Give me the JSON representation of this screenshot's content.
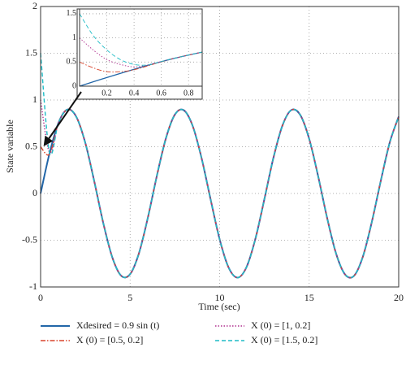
{
  "chart_data": [
    {
      "type": "line",
      "xlabel": "Time (sec)",
      "ylabel": "State variable",
      "x": [
        0,
        0.5,
        1,
        1.5,
        2,
        2.5,
        3,
        3.5,
        4,
        4.5,
        5,
        5.5,
        6,
        6.5,
        7,
        7.5,
        8,
        8.5,
        9,
        9.5,
        10,
        10.5,
        11,
        11.5,
        12,
        12.5,
        13,
        13.5,
        14,
        14.5,
        15,
        15.5,
        16,
        16.5,
        17,
        17.5,
        18,
        18.5,
        19,
        19.5,
        20
      ],
      "series": [
        {
          "name": "Xdesired = 0.9 sin (t)",
          "color": "#2266a8",
          "linestyle": "solid",
          "values": [
            0,
            0.431,
            0.757,
            0.898,
            0.818,
            0.539,
            0.127,
            -0.316,
            -0.681,
            -0.88,
            -0.863,
            -0.635,
            -0.251,
            0.194,
            0.591,
            0.844,
            0.89,
            0.719,
            0.371,
            -0.068,
            -0.49,
            -0.792,
            -0.9,
            -0.788,
            -0.483,
            -0.06,
            0.378,
            0.723,
            0.892,
            0.841,
            0.585,
            0.186,
            -0.259,
            -0.641,
            -0.865,
            -0.882,
            -0.676,
            -0.304,
            0.135,
            0.545,
            0.822
          ]
        },
        {
          "name": "X (0) = [0.5, 0.2]",
          "color": "#d9442b",
          "linestyle": "dashdot",
          "values": [
            0.5,
            0.42,
            0.757,
            0.898,
            0.818,
            0.539,
            0.127,
            -0.316,
            -0.681,
            -0.88,
            -0.863,
            -0.635,
            -0.251,
            0.194,
            0.591,
            0.844,
            0.89,
            0.719,
            0.371,
            -0.068,
            -0.49,
            -0.792,
            -0.9,
            -0.788,
            -0.483,
            -0.06,
            0.378,
            0.723,
            0.892,
            0.841,
            0.585,
            0.186,
            -0.259,
            -0.641,
            -0.865,
            -0.882,
            -0.676,
            -0.304,
            0.135,
            0.545,
            0.822
          ]
        },
        {
          "name": "X (0) = [1, 0.2]",
          "color": "#b0308f",
          "linestyle": "dotted",
          "values": [
            1,
            0.44,
            0.757,
            0.898,
            0.818,
            0.539,
            0.127,
            -0.316,
            -0.681,
            -0.88,
            -0.863,
            -0.635,
            -0.251,
            0.194,
            0.591,
            0.844,
            0.89,
            0.719,
            0.371,
            -0.068,
            -0.49,
            -0.792,
            -0.9,
            -0.788,
            -0.483,
            -0.06,
            0.378,
            0.723,
            0.892,
            0.841,
            0.585,
            0.186,
            -0.259,
            -0.641,
            -0.865,
            -0.882,
            -0.676,
            -0.304,
            0.135,
            0.545,
            0.822
          ]
        },
        {
          "name": "X (0) = [1.5, 0.2]",
          "color": "#1fbcc6",
          "linestyle": "dashed",
          "values": [
            1.5,
            0.44,
            0.757,
            0.898,
            0.818,
            0.539,
            0.127,
            -0.316,
            -0.681,
            -0.88,
            -0.863,
            -0.635,
            -0.251,
            0.194,
            0.591,
            0.844,
            0.89,
            0.719,
            0.371,
            -0.068,
            -0.49,
            -0.792,
            -0.9,
            -0.788,
            -0.483,
            -0.06,
            0.378,
            0.723,
            0.892,
            0.841,
            0.585,
            0.186,
            -0.259,
            -0.641,
            -0.865,
            -0.882,
            -0.676,
            -0.304,
            0.135,
            0.545,
            0.822
          ]
        }
      ],
      "xlim": [
        0,
        20
      ],
      "ylim": [
        -1,
        2
      ],
      "xticks": [
        0,
        5,
        10,
        15,
        20
      ],
      "yticks": [
        -1,
        -0.5,
        0,
        0.5,
        1,
        1.5,
        2
      ],
      "grid": true,
      "legend": "below"
    },
    {
      "type": "line",
      "x": [
        0,
        0.1,
        0.2,
        0.3,
        0.4,
        0.5,
        0.6,
        0.7,
        0.8,
        0.9
      ],
      "series": [
        {
          "color": "#2266a8",
          "linestyle": "solid",
          "values": [
            0,
            0.09,
            0.179,
            0.266,
            0.35,
            0.431,
            0.508,
            0.58,
            0.645,
            0.705
          ]
        },
        {
          "color": "#d9442b",
          "linestyle": "dashdot",
          "values": [
            0.5,
            0.38,
            0.3,
            0.3,
            0.34,
            0.42,
            0.505,
            0.58,
            0.645,
            0.705
          ]
        },
        {
          "color": "#b0308f",
          "linestyle": "dotted",
          "values": [
            1,
            0.75,
            0.55,
            0.45,
            0.4,
            0.44,
            0.51,
            0.58,
            0.645,
            0.705
          ]
        },
        {
          "color": "#1fbcc6",
          "linestyle": "dashed",
          "values": [
            1.5,
            1.05,
            0.75,
            0.55,
            0.45,
            0.44,
            0.51,
            0.58,
            0.645,
            0.705
          ]
        }
      ],
      "xlim": [
        0,
        0.9
      ],
      "ylim": [
        0,
        1.6
      ],
      "xticks": [
        0.2,
        0.4,
        0.6,
        0.8
      ],
      "yticks": [
        0,
        0.5,
        1,
        1.5
      ],
      "grid": true
    }
  ]
}
